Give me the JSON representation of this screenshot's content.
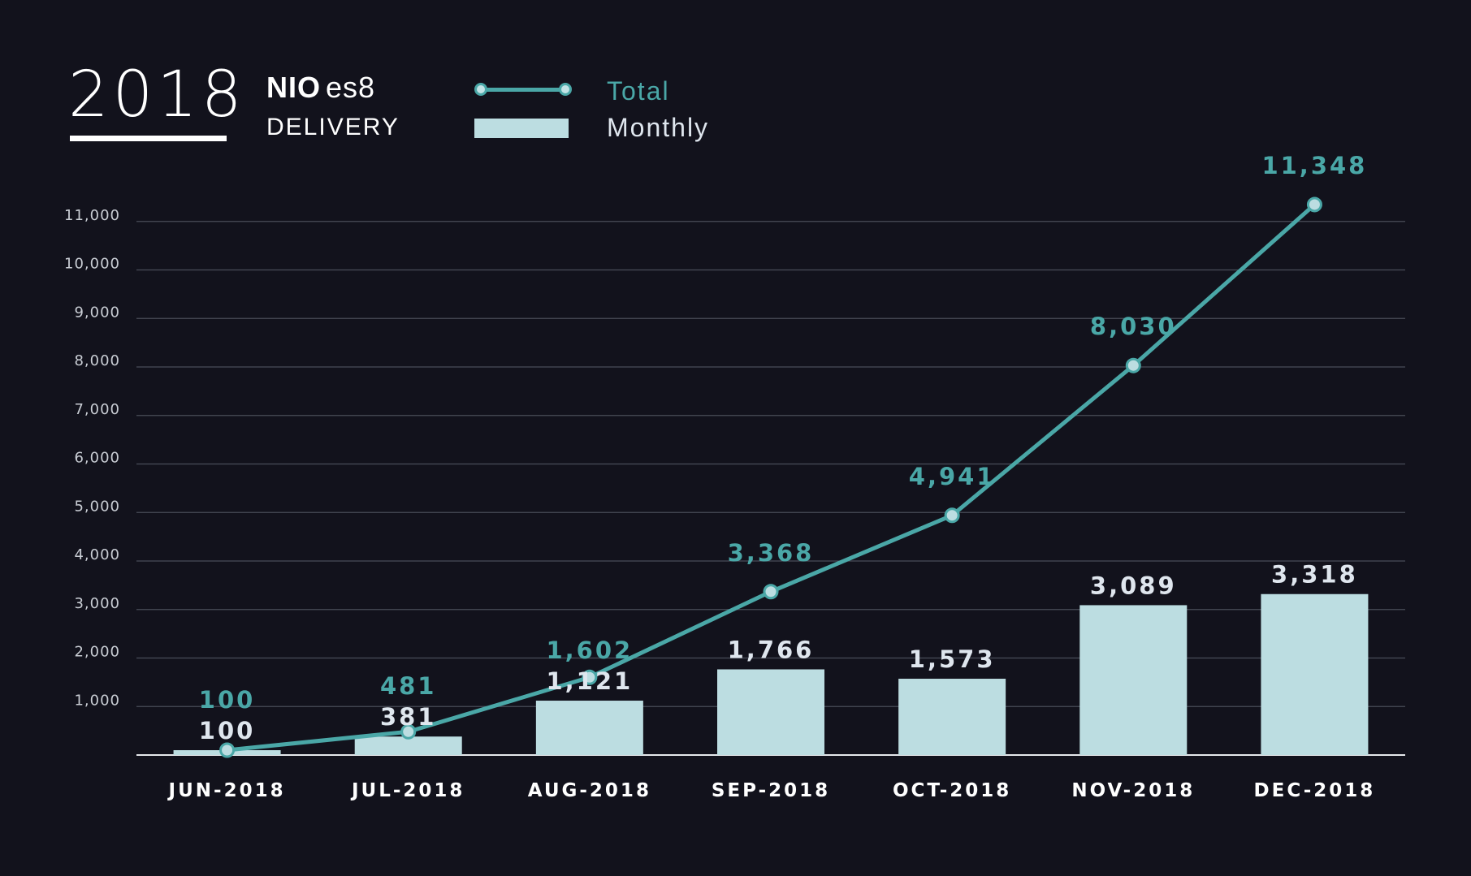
{
  "header": {
    "year": "2018",
    "brand_nio": "NIO",
    "brand_model": "es8",
    "subtitle": "DELIVERY"
  },
  "legend": {
    "total_label": "Total",
    "monthly_label": "Monthly"
  },
  "colors": {
    "background": "#12121c",
    "bar": "#bcdde1",
    "line": "#4aa7a7",
    "grid": "#4a4d58",
    "tick_text": "#c9cdd4",
    "monthly_text": "#dfe6ee"
  },
  "chart_data": {
    "type": "bar",
    "title": "2018 NIO es8 DELIVERY",
    "xlabel": "",
    "ylabel": "",
    "ylim": [
      0,
      11000
    ],
    "grid": true,
    "legend_position": "top",
    "categories": [
      "JUN-2018",
      "JUL-2018",
      "AUG-2018",
      "SEP-2018",
      "OCT-2018",
      "NOV-2018",
      "DEC-2018"
    ],
    "yticks": [
      1000,
      2000,
      3000,
      4000,
      5000,
      6000,
      7000,
      8000,
      9000,
      10000,
      11000
    ],
    "ytick_labels": [
      "1,000",
      "2,000",
      "3,000",
      "4,000",
      "5,000",
      "6,000",
      "7,000",
      "8,000",
      "9,000",
      "10,000",
      "11,000"
    ],
    "series": [
      {
        "name": "Monthly",
        "type": "bar",
        "values": [
          100,
          381,
          1121,
          1766,
          1573,
          3089,
          3318
        ],
        "labels": [
          "100",
          "381",
          "1,121",
          "1,766",
          "1,573",
          "3,089",
          "3,318"
        ]
      },
      {
        "name": "Total",
        "type": "line",
        "values": [
          100,
          481,
          1602,
          3368,
          4941,
          8030,
          11348
        ],
        "labels": [
          "100",
          "481",
          "1,602",
          "3,368",
          "4,941",
          "8,030",
          "11,348"
        ]
      }
    ]
  }
}
